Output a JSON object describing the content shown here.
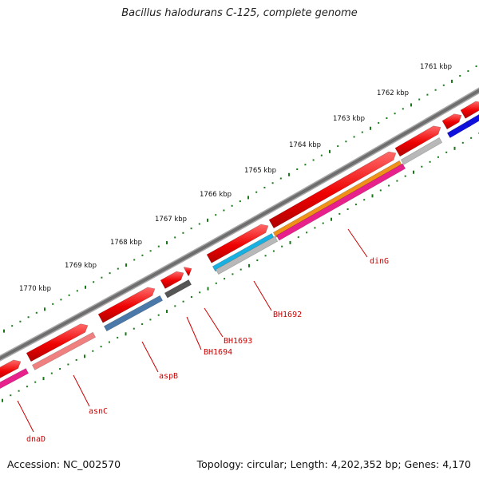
{
  "title": "Bacillus halodurans C-125, complete genome",
  "accession": "Accession: NC_002570",
  "summary": "Topology: circular; Length: 4,202,352 bp; Genes: 4,170",
  "kbp_labels": [
    "1761 kbp",
    "1762 kbp",
    "1763 kbp",
    "1764 kbp",
    "1765 kbp",
    "1766 kbp",
    "1767 kbp",
    "1768 kbp",
    "1769 kbp",
    "1770 kbp"
  ],
  "genes": [
    "dnaD",
    "asnC",
    "aspB",
    "BH1694",
    "BH1693",
    "BH1692",
    "dinG"
  ],
  "colors": {
    "backbone": "#7a7a7a",
    "cds_forward": "#ee0000",
    "cds_gray": "#b8b8b8",
    "cds_blue": "#1010dd",
    "cds_salmon": "#f08080",
    "cds_steel": "#4a78a8",
    "cds_dark": "#555555",
    "cds_cyan": "#18b0e0",
    "cds_orange": "#f09018",
    "cds_magenta": "#e8208c",
    "ticks": "#1a7a1a",
    "label": "#cc0000"
  }
}
